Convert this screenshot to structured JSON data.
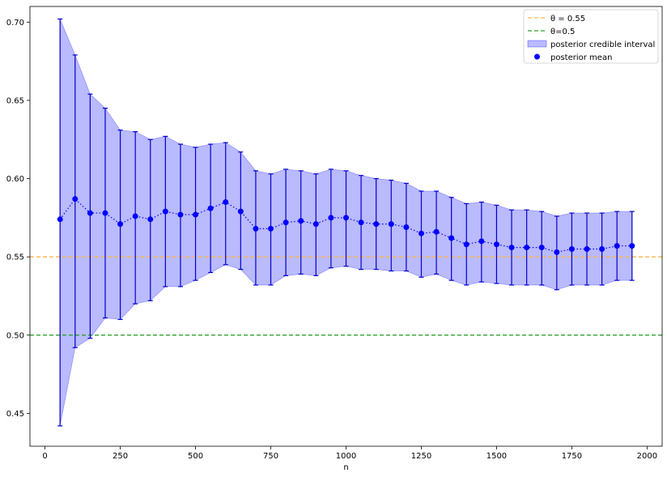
{
  "chart_data": {
    "type": "scatter",
    "title": "",
    "xlabel": "n",
    "ylabel": "",
    "xlim": [
      -50,
      2050
    ],
    "ylim": [
      0.429,
      0.71
    ],
    "x_ticks": [
      0,
      250,
      500,
      750,
      1000,
      1250,
      1500,
      1750,
      2000
    ],
    "x_tick_labels": [
      "0",
      "250",
      "500",
      "750",
      "1000",
      "1250",
      "1500",
      "1750",
      "2000"
    ],
    "y_ticks": [
      0.45,
      0.5,
      0.55,
      0.6,
      0.65,
      0.7
    ],
    "y_tick_labels": [
      "0.45",
      "0.50",
      "0.55",
      "0.60",
      "0.65",
      "0.70"
    ],
    "grid": false,
    "legend_position": "top-right",
    "reference_lines": [
      {
        "name": "θ=0.55",
        "legend_label": "θ = 0.55",
        "value": 0.55,
        "color": "#ffb347",
        "style": "dashed"
      },
      {
        "name": "θ=0.5",
        "legend_label": "θ=0.5",
        "value": 0.5,
        "color": "#2ca02c",
        "style": "dashed"
      }
    ],
    "interval": {
      "name": "posterior credible interval",
      "fill_color": "#0000ff",
      "fill_opacity": 0.27,
      "edge_color": "#0000cc"
    },
    "mean": {
      "name": "posterior mean",
      "color": "#0000ff"
    },
    "x": [
      50,
      100,
      150,
      200,
      250,
      300,
      350,
      400,
      450,
      500,
      550,
      600,
      650,
      700,
      750,
      800,
      850,
      900,
      950,
      1000,
      1050,
      1100,
      1150,
      1200,
      1250,
      1300,
      1350,
      1400,
      1450,
      1500,
      1550,
      1600,
      1650,
      1700,
      1750,
      1800,
      1850,
      1900,
      1950
    ],
    "posterior_mean": [
      0.574,
      0.587,
      0.578,
      0.578,
      0.571,
      0.576,
      0.574,
      0.579,
      0.577,
      0.577,
      0.581,
      0.585,
      0.579,
      0.568,
      0.568,
      0.572,
      0.573,
      0.571,
      0.575,
      0.575,
      0.572,
      0.571,
      0.571,
      0.569,
      0.565,
      0.566,
      0.562,
      0.558,
      0.56,
      0.558,
      0.556,
      0.556,
      0.556,
      0.553,
      0.555,
      0.555,
      0.555,
      0.557,
      0.557
    ],
    "interval_lower": [
      0.442,
      0.492,
      0.498,
      0.511,
      0.51,
      0.52,
      0.522,
      0.531,
      0.531,
      0.535,
      0.54,
      0.545,
      0.542,
      0.532,
      0.532,
      0.538,
      0.539,
      0.538,
      0.543,
      0.544,
      0.542,
      0.542,
      0.541,
      0.541,
      0.537,
      0.539,
      0.535,
      0.532,
      0.534,
      0.533,
      0.532,
      0.532,
      0.532,
      0.529,
      0.532,
      0.532,
      0.532,
      0.535,
      0.535
    ],
    "interval_upper": [
      0.702,
      0.679,
      0.654,
      0.645,
      0.631,
      0.63,
      0.625,
      0.627,
      0.622,
      0.62,
      0.622,
      0.623,
      0.617,
      0.605,
      0.603,
      0.606,
      0.605,
      0.603,
      0.606,
      0.605,
      0.602,
      0.6,
      0.599,
      0.597,
      0.592,
      0.592,
      0.588,
      0.584,
      0.585,
      0.583,
      0.58,
      0.58,
      0.579,
      0.576,
      0.578,
      0.578,
      0.578,
      0.579,
      0.579
    ]
  }
}
